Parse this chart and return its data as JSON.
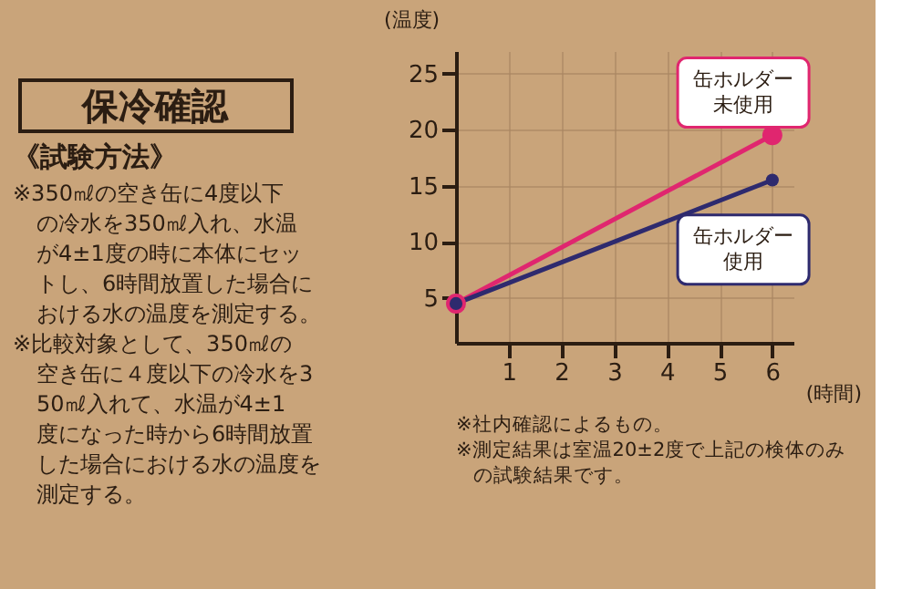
{
  "chart_data": {
    "type": "line",
    "title": "保冷確認",
    "xlabel": "(時間)",
    "ylabel": "(温度)",
    "x": [
      0,
      6
    ],
    "series": [
      {
        "name": "缶ホルダー未使用",
        "color": "#e0266f",
        "values": [
          4.5,
          19.5
        ]
      },
      {
        "name": "缶ホルダー使用",
        "color": "#2e2a6e",
        "values": [
          4.5,
          15.5
        ]
      }
    ],
    "xlim": [
      0,
      6.4
    ],
    "ylim": [
      1,
      27
    ],
    "xticks": [
      1,
      2,
      3,
      4,
      5,
      6
    ],
    "yticks": [
      5,
      10,
      15,
      20,
      25
    ],
    "grid": true,
    "marker": "circle",
    "line_style": "solid",
    "annotations": [
      "《試験方法》",
      "※350㎖の空き缶に4度以下の冷水を350㎖入れ、水温が4±1度の時に本体にセットし、6時間放置した場合における水の温度を測定する。",
      "※比較対象として、350㎖の空き缶に４度以下の冷水を350㎖入れて、水温が4±1度になった時から6時間放置した場合における水の温度を測定する。",
      "※社内確認によるもの。",
      "※測定結果は室温20±2度で上記の検体のみの試験結果です。"
    ]
  }
}
